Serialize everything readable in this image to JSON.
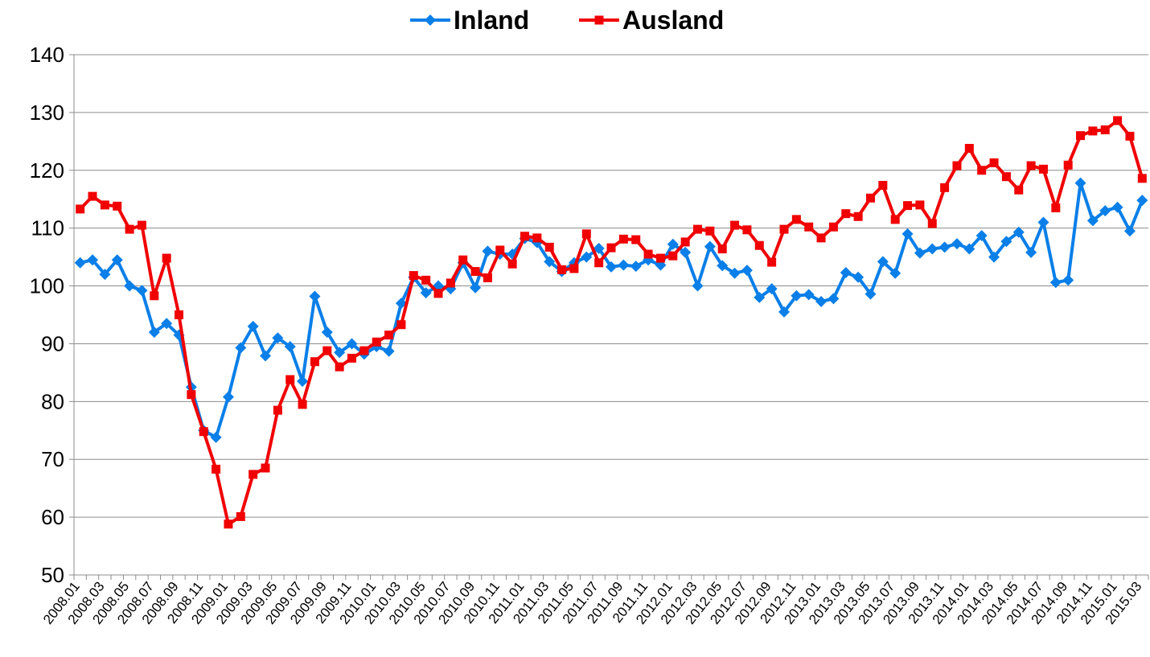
{
  "chart_data": {
    "type": "line",
    "categories": [
      "2008.01",
      null,
      "2008.03",
      null,
      "2008.05",
      null,
      "2008.07",
      null,
      "2008.09",
      null,
      "2008.11",
      null,
      "2009.01",
      null,
      "2009.03",
      null,
      "2009.05",
      null,
      "2009.07",
      null,
      "2009.09",
      null,
      "2009.11",
      null,
      "2010.01",
      null,
      "2010.03",
      null,
      "2010.05",
      null,
      "2010.07",
      null,
      "2010.09",
      null,
      "2010.11",
      null,
      "2011.01",
      null,
      "2011.03",
      null,
      "2011.05",
      null,
      "2011.07",
      null,
      "2011.09",
      null,
      "2011.11",
      null,
      "2012.01",
      null,
      "2012.03",
      null,
      "2012.05",
      null,
      "2012.07",
      null,
      "2012.09",
      null,
      "2012.11",
      null,
      "2013.01",
      null,
      "2013.03",
      null,
      "2013.05",
      null,
      "2013.07",
      null,
      "2013.09",
      null,
      "2013.11",
      null,
      "2014.01",
      null,
      "2014.03",
      null,
      "2014.05",
      null,
      "2014.07",
      null,
      "2014.09",
      null,
      "2014.11",
      null,
      "2015.01",
      null,
      "2015.03"
    ],
    "series": [
      {
        "name": "Inland",
        "color": "#0a7fe8",
        "marker": "diamond",
        "values": [
          104,
          104.5,
          102,
          104.5,
          100,
          99.2,
          92,
          93.5,
          91.5,
          82.5,
          75,
          73.8,
          80.8,
          89.3,
          93,
          87.9,
          91,
          89.5,
          83.5,
          98.2,
          92,
          88.5,
          90,
          88.2,
          89.5,
          88.7,
          97,
          101.5,
          98.8,
          100,
          99.5,
          104,
          99.7,
          106,
          105.5,
          105.5,
          108.2,
          107.5,
          104.2,
          102.5,
          104,
          105,
          106.5,
          103.3,
          103.6,
          103.4,
          104.5,
          103.6,
          107.2,
          105.8,
          100,
          106.8,
          103.5,
          102.2,
          102.7,
          98,
          99.5,
          95.5,
          98.3,
          98.5,
          97.3,
          97.8,
          102.3,
          101.5,
          98.6,
          104.2,
          102.2,
          109,
          105.7,
          106.4,
          106.7,
          107.3,
          106.4,
          108.7,
          105,
          107.7,
          109.3,
          105.8,
          111,
          100.6,
          101,
          117.8,
          111.3,
          113,
          113.6,
          109.5,
          114.8
        ]
      },
      {
        "name": "Ausland",
        "color": "#f00000",
        "marker": "square",
        "values": [
          113.3,
          115.5,
          114,
          113.8,
          109.8,
          110.5,
          98.3,
          104.8,
          95,
          81.2,
          74.8,
          68.3,
          58.8,
          60.1,
          67.4,
          68.5,
          78.5,
          83.8,
          79.5,
          86.9,
          88.8,
          86,
          87.5,
          88.8,
          90.3,
          91.5,
          93.3,
          101.8,
          101,
          98.7,
          100.5,
          104.5,
          102.5,
          101.4,
          106.2,
          103.8,
          108.6,
          108.3,
          106.7,
          102.8,
          103,
          109,
          104,
          106.6,
          108.1,
          108,
          105.5,
          104.8,
          105.2,
          107.6,
          109.8,
          109.5,
          106.4,
          110.5,
          109.7,
          107,
          104.1,
          109.8,
          111.5,
          110.2,
          108.3,
          110.2,
          112.5,
          112,
          115.2,
          117.4,
          111.5,
          113.9,
          114,
          110.8,
          117,
          120.8,
          123.8,
          120,
          121.3,
          118.9,
          116.6,
          120.8,
          120.2,
          113.5,
          120.9,
          126,
          126.8,
          127,
          128.6,
          125.9,
          118.6
        ]
      }
    ],
    "ylim": [
      50,
      140
    ],
    "yticks": [
      50,
      60,
      70,
      80,
      90,
      100,
      110,
      120,
      130,
      140
    ],
    "grid": true,
    "legend": "top"
  }
}
